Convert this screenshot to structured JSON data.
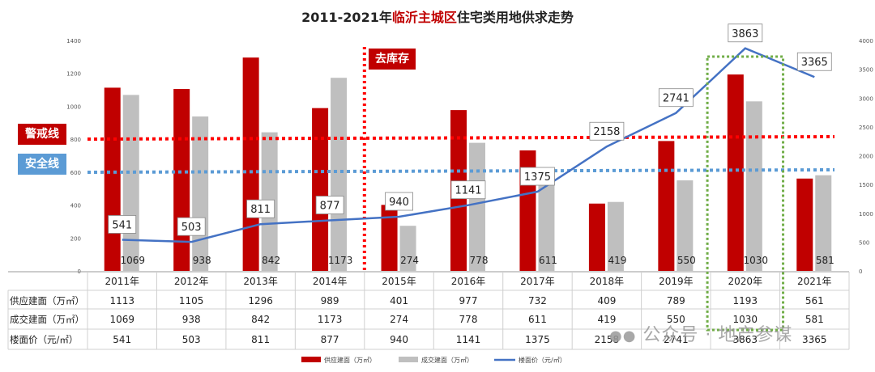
{
  "title": {
    "prefix": "2011-2021年",
    "highlight": "临沂主城区",
    "suffix": "住宅类用地供求走势"
  },
  "annotations": {
    "destock": "去库存",
    "warning_line": "警戒线",
    "safety_line": "安全线"
  },
  "watermark": "公众号 · 地产参谋",
  "colors": {
    "supply": "#c00000",
    "deal": "#bfbfbf",
    "price": "#4472c4",
    "warning": "#ff0000",
    "safety": "#5b9bd5",
    "highlight_box": "#70ad47"
  },
  "chart_data": {
    "type": "bar",
    "categories": [
      "2011年",
      "2012年",
      "2013年",
      "2014年",
      "2015年",
      "2016年",
      "2017年",
      "2018年",
      "2019年",
      "2020年",
      "2021年"
    ],
    "series": [
      {
        "name": "供应建面（万㎡）",
        "type": "bar",
        "axis": "left",
        "values": [
          1113,
          1105,
          1296,
          989,
          401,
          977,
          732,
          409,
          789,
          1193,
          561
        ]
      },
      {
        "name": "成交建面（万㎡）",
        "type": "bar",
        "axis": "left",
        "values": [
          1069,
          938,
          842,
          1173,
          274,
          778,
          611,
          419,
          550,
          1030,
          581
        ]
      },
      {
        "name": "楼面价（元/㎡）",
        "type": "line",
        "axis": "right",
        "values": [
          541,
          503,
          811,
          877,
          940,
          1141,
          1375,
          2158,
          2741,
          3863,
          3365
        ]
      }
    ],
    "table_labels": [
      "供应建面（万㎡）",
      "成交建面（万㎡）",
      "楼面价（元/㎡）"
    ],
    "legend": [
      "供应建面（万㎡）",
      "成交建面（万㎡）",
      "楼面价（元/㎡）"
    ],
    "legend_position": "bottom",
    "ylim_left": [
      0,
      1400
    ],
    "yticks_left": [
      0,
      200,
      400,
      600,
      800,
      1000,
      1200,
      1400
    ],
    "ylim_right": [
      0,
      4000
    ],
    "yticks_right": [
      0,
      500,
      1000,
      1500,
      2000,
      2500,
      3000,
      3500,
      4000
    ],
    "warning_level_left": 800,
    "safety_level_left": 600,
    "destock_after_index": 3,
    "highlight_index": 9
  }
}
